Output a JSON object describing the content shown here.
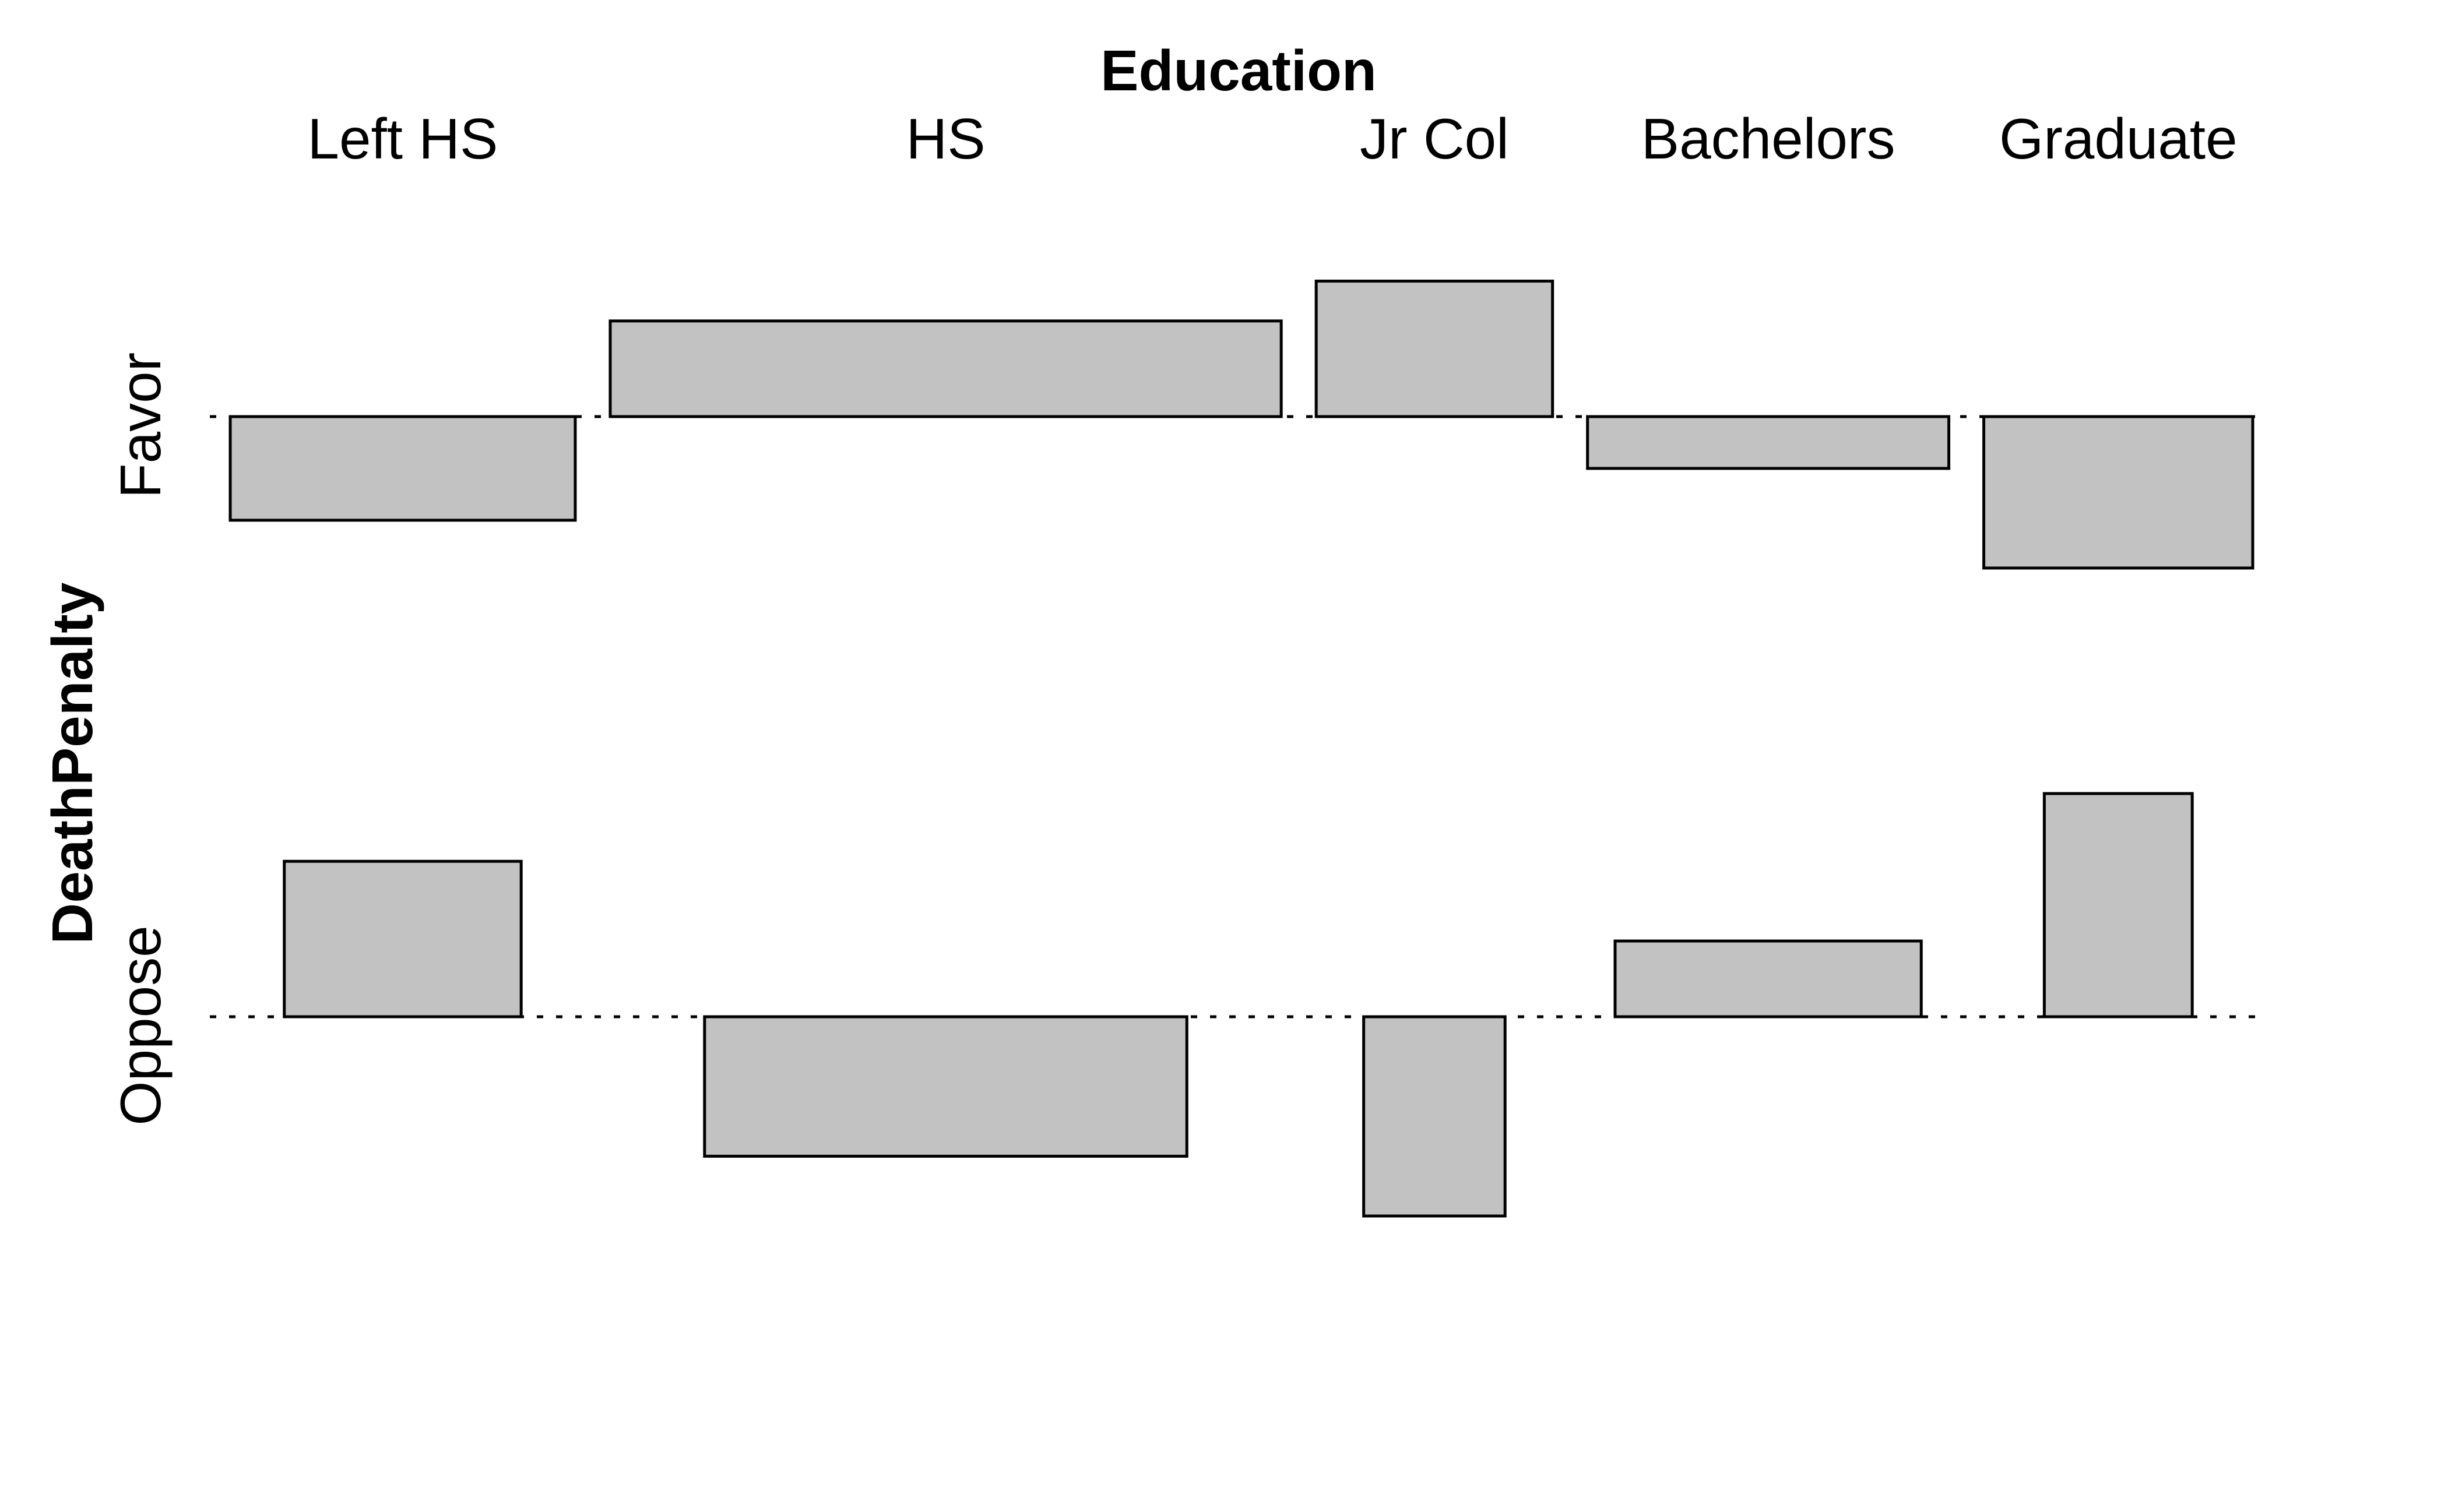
{
  "chart_data": {
    "type": "bar",
    "title": "Education",
    "ylabel": "DeathPenalty",
    "categories": [
      "Left HS",
      "HS",
      "Jr Col",
      "Bachelors",
      "Graduate"
    ],
    "rows": [
      "Favor",
      "Oppose"
    ],
    "series": [
      {
        "values": [
          -2.6,
          2.4,
          3.4,
          -1.3,
          -3.8
        ]
      },
      {
        "values": [
          3.9,
          -3.5,
          -5.0,
          1.9,
          5.6
        ]
      }
    ],
    "widths": [
      0.127,
      0.247,
      0.087,
      0.133,
      0.099
    ],
    "grid": false,
    "colors": {
      "bar_fill": "#c2c2c2",
      "bar_stroke": "#000000",
      "baseline": "#000000"
    }
  }
}
